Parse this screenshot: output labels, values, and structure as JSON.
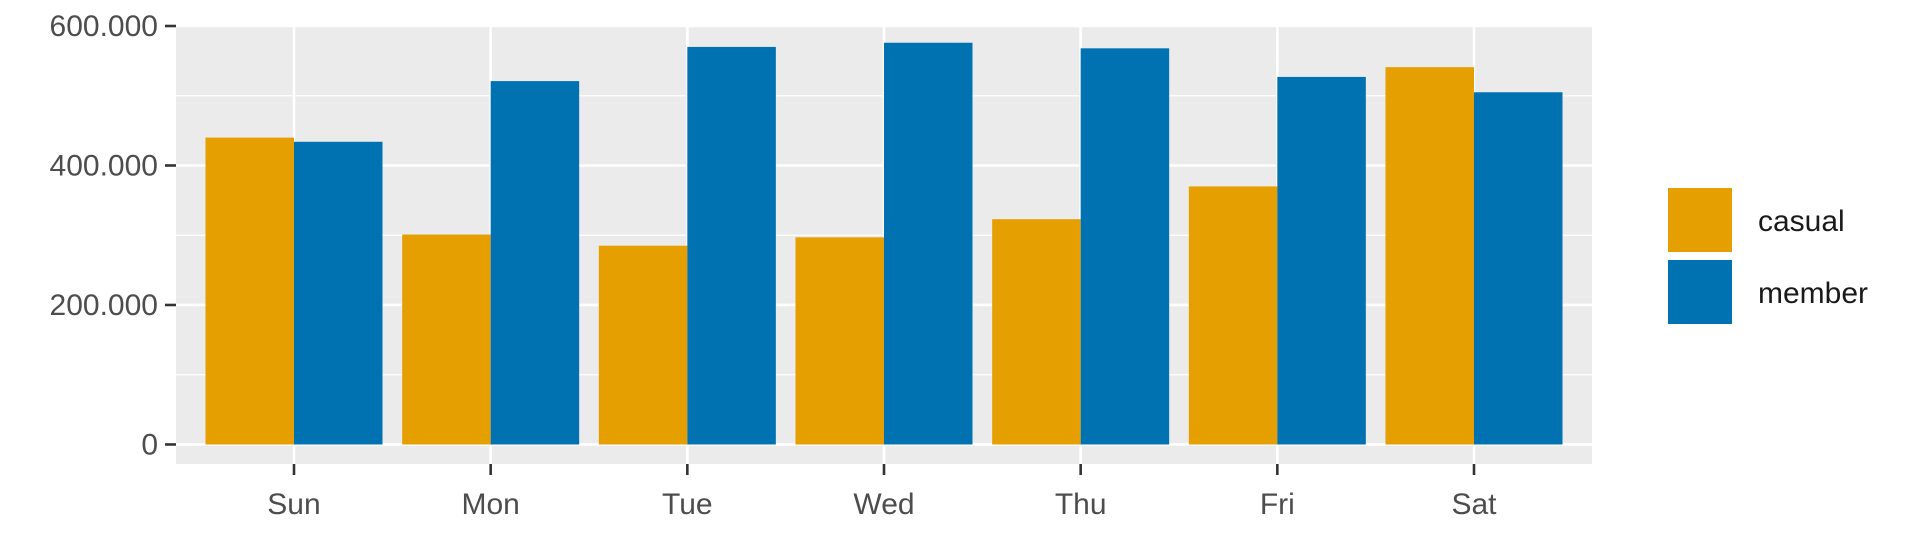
{
  "chart_data": {
    "type": "bar",
    "title": "",
    "xlabel": "",
    "ylabel": "",
    "categories": [
      "Sun",
      "Mon",
      "Tue",
      "Wed",
      "Thu",
      "Fri",
      "Sat"
    ],
    "series": [
      {
        "name": "casual",
        "color": "#E69F00",
        "values": [
          440000,
          301000,
          285000,
          297000,
          323000,
          370000,
          541000
        ]
      },
      {
        "name": "member",
        "color": "#0072B2",
        "values": [
          434000,
          521000,
          570000,
          576000,
          568000,
          527000,
          505000
        ]
      }
    ],
    "ylim": [
      -28000,
      600000
    ],
    "yticks": [
      0,
      200000,
      400000,
      600000
    ],
    "ytick_labels": [
      "0",
      "200.000",
      "400.000",
      "600.000"
    ],
    "grid": true,
    "panel_background": "#EBEBEB",
    "legend_position": "right"
  }
}
